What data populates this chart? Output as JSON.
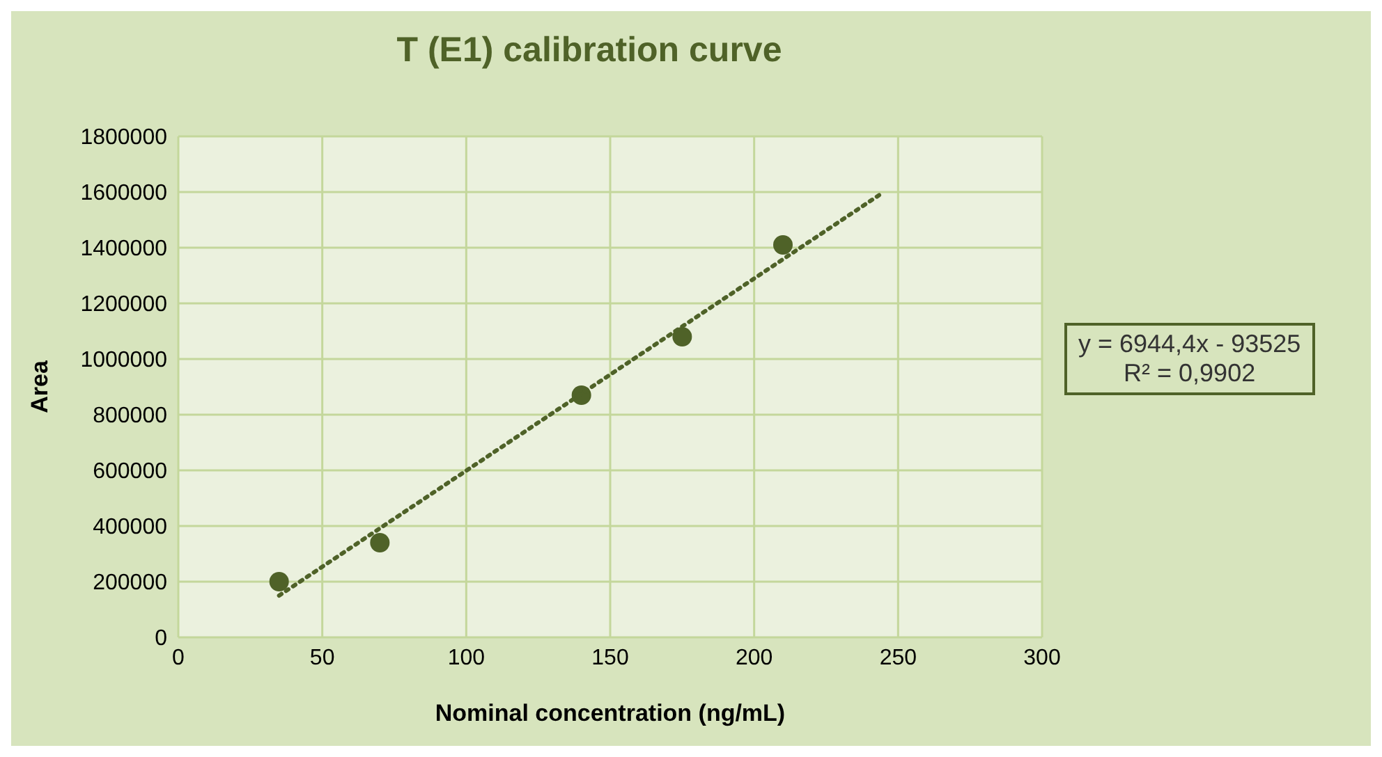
{
  "chart_data": {
    "type": "scatter",
    "title": "T (E1) calibration curve",
    "xlabel": "Nominal concentration (ng/mL)",
    "ylabel": "Area",
    "series": [
      {
        "type": "scatter",
        "color": "#4f6228",
        "marker": "circle",
        "x": [
          35,
          70,
          140,
          175,
          210
        ],
        "values": [
          200000,
          340000,
          870000,
          1080000,
          1410000
        ]
      },
      {
        "type": "line",
        "color": "#4f6228",
        "marker": "none",
        "line_style": "dotted",
        "x": [
          35,
          245
        ],
        "values": [
          150000,
          1600000
        ]
      }
    ],
    "xlim": [
      0,
      300
    ],
    "xticks": [
      0,
      50,
      100,
      150,
      200,
      250,
      300
    ],
    "ylim": [
      0,
      1800000
    ],
    "yticks": [
      0,
      200000,
      400000,
      600000,
      800000,
      1000000,
      1200000,
      1400000,
      1600000,
      1800000
    ],
    "grid": true,
    "annotations": [
      "y = 6944,4x - 93525",
      "R² = 0,9902"
    ]
  }
}
